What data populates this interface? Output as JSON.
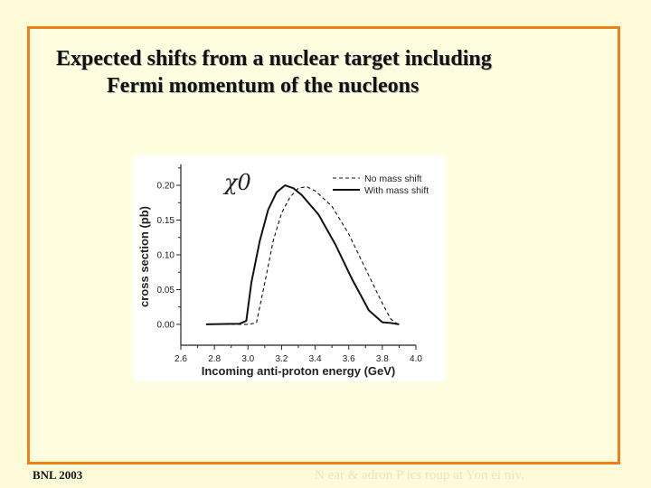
{
  "slide": {
    "title_line1": "Expected shifts from a nuclear target including",
    "title_line2": "Fermi momentum of  the nucleons",
    "footer_left": "BNL 2003",
    "footer_right": "N   ear &   adron P   ics   roup at Yon  ei   niv.",
    "frame_color": "#f07f18"
  },
  "chart_data": {
    "type": "line",
    "annotation": "χ0",
    "xlabel": "Incoming anti-proton energy (GeV)",
    "ylabel": "cross section (pb)",
    "xlim": [
      2.6,
      4.0
    ],
    "ylim": [
      -0.03,
      0.23
    ],
    "xticks": [
      "2.6",
      "2.8",
      "3.0",
      "3.2",
      "3.4",
      "3.6",
      "3.8",
      "4.0"
    ],
    "yticks": [
      "0.00",
      "0.05",
      "0.10",
      "0.15",
      "0.20"
    ],
    "grid": false,
    "legend_position": "top-right",
    "series": [
      {
        "name": "No mass shift",
        "style": "dashed",
        "x": [
          2.75,
          3.0,
          3.05,
          3.1,
          3.15,
          3.2,
          3.25,
          3.3,
          3.35,
          3.4,
          3.5,
          3.6,
          3.7,
          3.8,
          3.85,
          3.88,
          3.9
        ],
        "y": [
          0.0,
          0.0,
          0.002,
          0.06,
          0.12,
          0.16,
          0.183,
          0.196,
          0.198,
          0.192,
          0.17,
          0.13,
          0.08,
          0.03,
          0.008,
          0.002,
          0.0
        ]
      },
      {
        "name": "With mass shift",
        "style": "solid",
        "x": [
          2.75,
          2.95,
          2.99,
          3.02,
          3.07,
          3.12,
          3.17,
          3.22,
          3.27,
          3.32,
          3.42,
          3.52,
          3.62,
          3.72,
          3.8,
          3.85,
          3.9
        ],
        "y": [
          0.0,
          0.001,
          0.005,
          0.06,
          0.12,
          0.165,
          0.19,
          0.2,
          0.196,
          0.186,
          0.158,
          0.115,
          0.065,
          0.02,
          0.003,
          0.002,
          0.0
        ]
      }
    ]
  }
}
